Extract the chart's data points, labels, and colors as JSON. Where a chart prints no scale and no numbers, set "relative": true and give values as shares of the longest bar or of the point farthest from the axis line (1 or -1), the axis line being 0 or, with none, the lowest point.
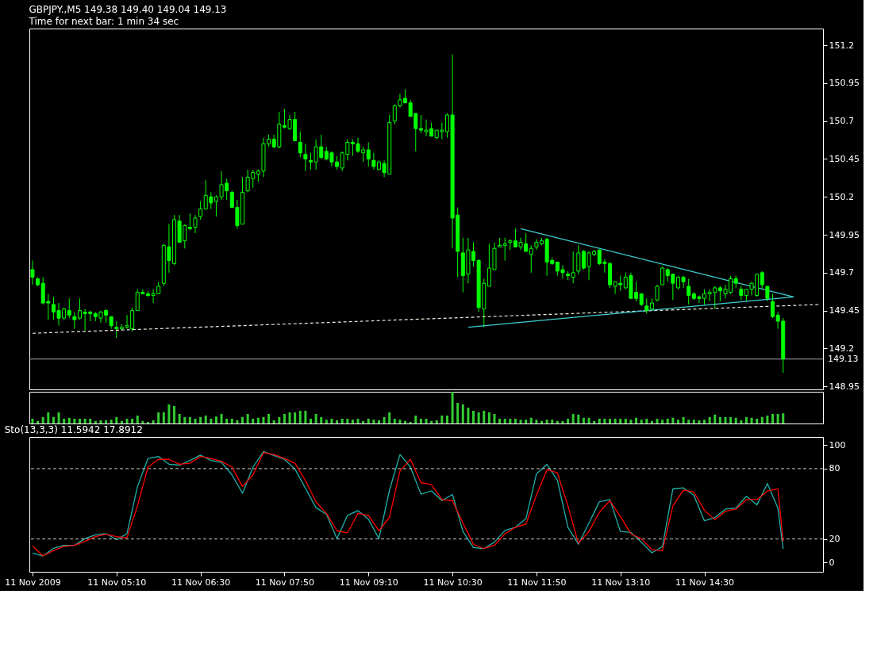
{
  "chart_data": [
    {
      "type": "candlestick",
      "title": "GBPJPY.,M5  149.38 149.40 149.04 149.13",
      "subtitle": "Time for next bar: 1 min 34 sec",
      "color": "#00ff00",
      "tick_labels": "y",
      "xlim": [
        "2009-11-11T03:47",
        "2009-11-11T16:23"
      ],
      "ylim": [
        148.93,
        151.31
      ],
      "yticks": [
        148.95,
        149.2,
        149.45,
        149.7,
        149.95,
        150.2,
        150.45,
        150.7,
        150.95,
        151.2
      ],
      "x": [
        "2009-11-11T03:50",
        "2009-11-11T03:55",
        "2009-11-11T04:00",
        "2009-11-11T04:05",
        "2009-11-11T04:10",
        "2009-11-11T04:15",
        "2009-11-11T04:20",
        "2009-11-11T04:25",
        "2009-11-11T04:30",
        "2009-11-11T04:35",
        "2009-11-11T04:40",
        "2009-11-11T04:45",
        "2009-11-11T04:50",
        "2009-11-11T04:55",
        "2009-11-11T05:00",
        "2009-11-11T05:05",
        "2009-11-11T05:10",
        "2009-11-11T05:15",
        "2009-11-11T05:20",
        "2009-11-11T05:25",
        "2009-11-11T05:30",
        "2009-11-11T05:35",
        "2009-11-11T05:40",
        "2009-11-11T05:45",
        "2009-11-11T05:50",
        "2009-11-11T05:55",
        "2009-11-11T06:00",
        "2009-11-11T06:05",
        "2009-11-11T06:10",
        "2009-11-11T06:15",
        "2009-11-11T06:20",
        "2009-11-11T06:25",
        "2009-11-11T06:30",
        "2009-11-11T06:35",
        "2009-11-11T06:40",
        "2009-11-11T06:45",
        "2009-11-11T06:50",
        "2009-11-11T06:55",
        "2009-11-11T07:00",
        "2009-11-11T07:05",
        "2009-11-11T07:10",
        "2009-11-11T07:15",
        "2009-11-11T07:20",
        "2009-11-11T07:25",
        "2009-11-11T07:30",
        "2009-11-11T07:35",
        "2009-11-11T07:40",
        "2009-11-11T07:45",
        "2009-11-11T07:50",
        "2009-11-11T07:55",
        "2009-11-11T08:00",
        "2009-11-11T08:05",
        "2009-11-11T08:10",
        "2009-11-11T08:15",
        "2009-11-11T08:20",
        "2009-11-11T08:25",
        "2009-11-11T08:30",
        "2009-11-11T08:35",
        "2009-11-11T08:40",
        "2009-11-11T08:45",
        "2009-11-11T08:50",
        "2009-11-11T08:55",
        "2009-11-11T09:00",
        "2009-11-11T09:05",
        "2009-11-11T09:10",
        "2009-11-11T09:15",
        "2009-11-11T09:20",
        "2009-11-11T09:25",
        "2009-11-11T09:30",
        "2009-11-11T09:35",
        "2009-11-11T09:40",
        "2009-11-11T09:45",
        "2009-11-11T09:50",
        "2009-11-11T09:55",
        "2009-11-11T10:00",
        "2009-11-11T10:05",
        "2009-11-11T10:10",
        "2009-11-11T10:15",
        "2009-11-11T10:20",
        "2009-11-11T10:25",
        "2009-11-11T10:30",
        "2009-11-11T10:35",
        "2009-11-11T10:40",
        "2009-11-11T10:45",
        "2009-11-11T10:50",
        "2009-11-11T10:55",
        "2009-11-11T11:00",
        "2009-11-11T11:05",
        "2009-11-11T11:10",
        "2009-11-11T11:15",
        "2009-11-11T11:20",
        "2009-11-11T11:25",
        "2009-11-11T11:30",
        "2009-11-11T11:35",
        "2009-11-11T11:40",
        "2009-11-11T11:45",
        "2009-11-11T11:50",
        "2009-11-11T11:55",
        "2009-11-11T12:00",
        "2009-11-11T12:05",
        "2009-11-11T12:10",
        "2009-11-11T12:15",
        "2009-11-11T12:20",
        "2009-11-11T12:25",
        "2009-11-11T12:30",
        "2009-11-11T12:35",
        "2009-11-11T12:40",
        "2009-11-11T12:45",
        "2009-11-11T12:50",
        "2009-11-11T12:55",
        "2009-11-11T13:00",
        "2009-11-11T13:05",
        "2009-11-11T13:10",
        "2009-11-11T13:15",
        "2009-11-11T13:20",
        "2009-11-11T13:25",
        "2009-11-11T13:30",
        "2009-11-11T13:35",
        "2009-11-11T13:40",
        "2009-11-11T13:45",
        "2009-11-11T13:50",
        "2009-11-11T13:55",
        "2009-11-11T14:00",
        "2009-11-11T14:05",
        "2009-11-11T14:10",
        "2009-11-11T14:15",
        "2009-11-11T14:20",
        "2009-11-11T14:25",
        "2009-11-11T14:30",
        "2009-11-11T14:35",
        "2009-11-11T14:40",
        "2009-11-11T14:45",
        "2009-11-11T14:50",
        "2009-11-11T14:55",
        "2009-11-11T15:00",
        "2009-11-11T15:05",
        "2009-11-11T15:10",
        "2009-11-11T15:15",
        "2009-11-11T15:20",
        "2009-11-11T15:25",
        "2009-11-11T15:30",
        "2009-11-11T15:35",
        "2009-11-11T15:40",
        "2009-11-11T15:45"
      ],
      "ohlc": [
        [
          149.72,
          149.78,
          149.62,
          149.67
        ],
        [
          149.66,
          149.67,
          149.61,
          149.62
        ],
        [
          149.63,
          149.67,
          149.49,
          149.5
        ],
        [
          149.51,
          149.56,
          149.39,
          149.5
        ],
        [
          149.49,
          149.54,
          149.39,
          149.44
        ],
        [
          149.45,
          149.5,
          149.35,
          149.4
        ],
        [
          149.4,
          149.47,
          149.39,
          149.46
        ],
        [
          149.45,
          149.53,
          149.4,
          149.42
        ],
        [
          149.41,
          149.44,
          149.33,
          149.39
        ],
        [
          149.4,
          149.53,
          149.39,
          149.45
        ],
        [
          149.44,
          149.46,
          149.32,
          149.43
        ],
        [
          149.44,
          149.45,
          149.38,
          149.43
        ],
        [
          149.43,
          149.44,
          149.38,
          149.41
        ],
        [
          149.4,
          149.45,
          149.37,
          149.44
        ],
        [
          149.45,
          149.46,
          149.37,
          149.42
        ],
        [
          149.41,
          149.41,
          149.33,
          149.35
        ],
        [
          149.34,
          149.38,
          149.27,
          149.33
        ],
        [
          149.33,
          149.36,
          149.32,
          149.34
        ],
        [
          149.34,
          149.42,
          149.33,
          149.35
        ],
        [
          149.33,
          149.47,
          149.31,
          149.45
        ],
        [
          149.45,
          149.59,
          149.45,
          149.57
        ],
        [
          149.57,
          149.59,
          149.56,
          149.56
        ],
        [
          149.56,
          149.58,
          149.54,
          149.55
        ],
        [
          149.55,
          149.59,
          149.5,
          149.56
        ],
        [
          149.56,
          149.64,
          149.56,
          149.61
        ],
        [
          149.63,
          149.89,
          149.61,
          149.88
        ],
        [
          149.87,
          150.02,
          149.7,
          149.78
        ],
        [
          149.76,
          150.08,
          149.75,
          150.05
        ],
        [
          150.04,
          150.08,
          149.9,
          149.9
        ],
        [
          149.91,
          150.02,
          149.86,
          150.01
        ],
        [
          150.0,
          150.09,
          149.98,
          149.99
        ],
        [
          150.0,
          150.08,
          149.96,
          150.06
        ],
        [
          150.07,
          150.17,
          150.05,
          150.12
        ],
        [
          150.12,
          150.31,
          150.12,
          150.21
        ],
        [
          150.2,
          150.23,
          150.12,
          150.16
        ],
        [
          150.17,
          150.21,
          150.07,
          150.2
        ],
        [
          150.2,
          150.37,
          150.18,
          150.28
        ],
        [
          150.29,
          150.32,
          150.18,
          150.24
        ],
        [
          150.23,
          150.24,
          150.13,
          150.13
        ],
        [
          150.13,
          150.18,
          149.99,
          150.01
        ],
        [
          150.02,
          150.33,
          150.02,
          150.23
        ],
        [
          150.24,
          150.38,
          150.23,
          150.33
        ],
        [
          150.32,
          150.38,
          150.26,
          150.36
        ],
        [
          150.35,
          150.38,
          150.3,
          150.37
        ],
        [
          150.37,
          150.59,
          150.33,
          150.55
        ],
        [
          150.55,
          150.61,
          150.53,
          150.58
        ],
        [
          150.58,
          150.61,
          150.52,
          150.53
        ],
        [
          150.53,
          150.76,
          150.52,
          150.68
        ],
        [
          150.67,
          150.78,
          150.65,
          150.66
        ],
        [
          150.65,
          150.74,
          150.64,
          150.71
        ],
        [
          150.71,
          150.76,
          150.57,
          150.57
        ],
        [
          150.56,
          150.63,
          150.46,
          150.49
        ],
        [
          150.48,
          150.55,
          150.37,
          150.45
        ],
        [
          150.44,
          150.49,
          150.38,
          150.43
        ],
        [
          150.43,
          150.58,
          150.38,
          150.53
        ],
        [
          150.53,
          150.61,
          150.45,
          150.46
        ],
        [
          150.5,
          150.53,
          150.44,
          150.45
        ],
        [
          150.49,
          150.5,
          150.4,
          150.43
        ],
        [
          150.43,
          150.47,
          150.38,
          150.4
        ],
        [
          150.39,
          150.5,
          150.37,
          150.49
        ],
        [
          150.48,
          150.58,
          150.44,
          150.56
        ],
        [
          150.56,
          150.58,
          150.47,
          150.55
        ],
        [
          150.55,
          150.59,
          150.49,
          150.5
        ],
        [
          150.49,
          150.53,
          150.43,
          150.51
        ],
        [
          150.51,
          150.56,
          150.4,
          150.45
        ],
        [
          150.44,
          150.49,
          150.38,
          150.4
        ],
        [
          150.38,
          150.44,
          150.38,
          150.43
        ],
        [
          150.42,
          150.44,
          150.33,
          150.36
        ],
        [
          150.35,
          150.74,
          150.35,
          150.69
        ],
        [
          150.7,
          150.81,
          150.68,
          150.8
        ],
        [
          150.8,
          150.88,
          150.79,
          150.84
        ],
        [
          150.85,
          150.91,
          150.82,
          150.82
        ],
        [
          150.82,
          150.84,
          150.73,
          150.73
        ],
        [
          150.75,
          150.75,
          150.5,
          150.65
        ],
        [
          150.65,
          150.74,
          150.62,
          150.64
        ],
        [
          150.63,
          150.71,
          150.6,
          150.64
        ],
        [
          150.65,
          150.69,
          150.6,
          150.6
        ],
        [
          150.59,
          150.64,
          150.58,
          150.64
        ],
        [
          150.63,
          150.69,
          150.58,
          150.64
        ],
        [
          150.63,
          150.75,
          150.59,
          150.74
        ],
        [
          150.74,
          151.14,
          149.86,
          150.06
        ],
        [
          150.08,
          150.13,
          149.67,
          149.84
        ],
        [
          149.83,
          149.93,
          149.57,
          149.68
        ],
        [
          149.69,
          149.93,
          149.63,
          149.85
        ],
        [
          149.84,
          149.9,
          149.74,
          149.78
        ],
        [
          149.78,
          149.79,
          149.44,
          149.47
        ],
        [
          149.46,
          149.66,
          149.34,
          149.63
        ],
        [
          149.61,
          149.89,
          149.61,
          149.73
        ],
        [
          149.72,
          149.9,
          149.72,
          149.86
        ],
        [
          149.87,
          149.93,
          149.87,
          149.88
        ],
        [
          149.88,
          149.93,
          149.78,
          149.89
        ],
        [
          149.9,
          149.92,
          149.85,
          149.91
        ],
        [
          149.91,
          149.99,
          149.87,
          149.87
        ],
        [
          149.87,
          149.93,
          149.85,
          149.9
        ],
        [
          149.89,
          149.96,
          149.84,
          149.84
        ],
        [
          149.82,
          149.88,
          149.7,
          149.86
        ],
        [
          149.87,
          149.92,
          149.85,
          149.9
        ],
        [
          149.89,
          149.93,
          149.88,
          149.91
        ],
        [
          149.92,
          149.93,
          149.68,
          149.77
        ],
        [
          149.78,
          149.8,
          149.75,
          149.76
        ],
        [
          149.77,
          149.77,
          149.68,
          149.71
        ],
        [
          149.72,
          149.75,
          149.66,
          149.7
        ],
        [
          149.69,
          149.71,
          149.65,
          149.68
        ],
        [
          149.67,
          149.84,
          149.63,
          149.7
        ],
        [
          149.71,
          149.88,
          149.69,
          149.83
        ],
        [
          149.84,
          149.85,
          149.72,
          149.73
        ],
        [
          149.74,
          149.84,
          149.65,
          149.83
        ],
        [
          149.82,
          149.85,
          149.81,
          149.84
        ],
        [
          149.85,
          149.85,
          149.75,
          149.76
        ],
        [
          149.77,
          149.79,
          149.7,
          149.76
        ],
        [
          149.76,
          149.77,
          149.6,
          149.62
        ],
        [
          149.61,
          149.64,
          149.56,
          149.64
        ],
        [
          149.63,
          149.68,
          149.58,
          149.62
        ],
        [
          149.6,
          149.7,
          149.59,
          149.67
        ],
        [
          149.68,
          149.7,
          149.53,
          149.53
        ],
        [
          149.57,
          149.64,
          149.51,
          149.53
        ],
        [
          149.56,
          149.56,
          149.48,
          149.49
        ],
        [
          149.48,
          149.53,
          149.43,
          149.45
        ],
        [
          149.46,
          149.53,
          149.45,
          149.5
        ],
        [
          149.52,
          149.62,
          149.51,
          149.61
        ],
        [
          149.62,
          149.74,
          149.62,
          149.73
        ],
        [
          149.72,
          149.73,
          149.64,
          149.68
        ],
        [
          149.69,
          149.69,
          149.52,
          149.63
        ],
        [
          149.6,
          149.68,
          149.59,
          149.67
        ],
        [
          149.67,
          149.68,
          149.6,
          149.64
        ],
        [
          149.61,
          149.66,
          149.49,
          149.55
        ],
        [
          149.56,
          149.57,
          149.52,
          149.53
        ],
        [
          149.54,
          149.55,
          149.5,
          149.53
        ],
        [
          149.53,
          149.59,
          149.49,
          149.56
        ],
        [
          149.56,
          149.59,
          149.51,
          149.57
        ],
        [
          149.57,
          149.61,
          149.46,
          149.6
        ],
        [
          149.6,
          149.61,
          149.51,
          149.58
        ],
        [
          149.56,
          149.62,
          149.53,
          149.59
        ],
        [
          149.57,
          149.68,
          149.56,
          149.66
        ],
        [
          149.66,
          149.68,
          149.6,
          149.63
        ],
        [
          149.59,
          149.61,
          149.52,
          149.55
        ],
        [
          149.55,
          149.59,
          149.51,
          149.59
        ],
        [
          149.59,
          149.64,
          149.55,
          149.63
        ],
        [
          149.55,
          149.69,
          149.54,
          149.69
        ],
        [
          149.7,
          149.71,
          149.59,
          149.62
        ],
        [
          149.61,
          149.61,
          149.51,
          149.53
        ],
        [
          149.51,
          149.56,
          149.4,
          149.41
        ],
        [
          149.42,
          149.44,
          149.33,
          149.38
        ],
        [
          149.38,
          149.4,
          149.04,
          149.13
        ]
      ],
      "series": [
        {
          "type": "line",
          "color": "#f0f0e0",
          "line_style": "dashed",
          "x": [
            "2009-11-11T03:50",
            "2009-11-11T16:20"
          ],
          "values": [
            149.3,
            149.49
          ]
        },
        {
          "type": "line",
          "color": "#40d0d0",
          "line_style": "solid",
          "x": [
            "2009-11-11T11:35",
            "2009-11-11T15:55"
          ],
          "values": [
            149.99,
            149.54
          ]
        },
        {
          "type": "line",
          "color": "#40d0d0",
          "line_style": "solid",
          "x": [
            "2009-11-11T10:45",
            "2009-11-11T15:55"
          ],
          "values": [
            149.34,
            149.54
          ]
        }
      ],
      "ref_lines": [
        {
          "axis": "y",
          "value": 149.13,
          "label": "149.13",
          "color": "#a0a8b0"
        }
      ]
    },
    {
      "type": "bar",
      "relative": true,
      "color": "#32cd32",
      "tick_labels": false,
      "xlim": [
        "2009-11-11T03:47",
        "2009-11-11T16:23"
      ],
      "x": [
        "2009-11-11T03:50",
        "2009-11-11T03:55",
        "2009-11-11T04:00",
        "2009-11-11T04:05",
        "2009-11-11T04:10",
        "2009-11-11T04:15",
        "2009-11-11T04:20",
        "2009-11-11T04:25",
        "2009-11-11T04:30",
        "2009-11-11T04:35",
        "2009-11-11T04:40",
        "2009-11-11T04:45",
        "2009-11-11T04:50",
        "2009-11-11T04:55",
        "2009-11-11T05:00",
        "2009-11-11T05:05",
        "2009-11-11T05:10",
        "2009-11-11T05:15",
        "2009-11-11T05:20",
        "2009-11-11T05:25",
        "2009-11-11T05:30",
        "2009-11-11T05:35",
        "2009-11-11T05:40",
        "2009-11-11T05:45",
        "2009-11-11T05:50",
        "2009-11-11T05:55",
        "2009-11-11T06:00",
        "2009-11-11T06:05",
        "2009-11-11T06:10",
        "2009-11-11T06:15",
        "2009-11-11T06:20",
        "2009-11-11T06:25",
        "2009-11-11T06:30",
        "2009-11-11T06:35",
        "2009-11-11T06:40",
        "2009-11-11T06:45",
        "2009-11-11T06:50",
        "2009-11-11T06:55",
        "2009-11-11T07:00",
        "2009-11-11T07:05",
        "2009-11-11T07:10",
        "2009-11-11T07:15",
        "2009-11-11T07:20",
        "2009-11-11T07:25",
        "2009-11-11T07:30",
        "2009-11-11T07:35",
        "2009-11-11T07:40",
        "2009-11-11T07:45",
        "2009-11-11T07:50",
        "2009-11-11T07:55",
        "2009-11-11T08:00",
        "2009-11-11T08:05",
        "2009-11-11T08:10",
        "2009-11-11T08:15",
        "2009-11-11T08:20",
        "2009-11-11T08:25",
        "2009-11-11T08:30",
        "2009-11-11T08:35",
        "2009-11-11T08:40",
        "2009-11-11T08:45",
        "2009-11-11T08:50",
        "2009-11-11T08:55",
        "2009-11-11T09:00",
        "2009-11-11T09:05",
        "2009-11-11T09:10",
        "2009-11-11T09:15",
        "2009-11-11T09:20",
        "2009-11-11T09:25",
        "2009-11-11T09:30",
        "2009-11-11T09:35",
        "2009-11-11T09:40",
        "2009-11-11T09:45",
        "2009-11-11T09:50",
        "2009-11-11T09:55",
        "2009-11-11T10:00",
        "2009-11-11T10:05",
        "2009-11-11T10:10",
        "2009-11-11T10:15",
        "2009-11-11T10:20",
        "2009-11-11T10:25",
        "2009-11-11T10:30",
        "2009-11-11T10:35",
        "2009-11-11T10:40",
        "2009-11-11T10:45",
        "2009-11-11T10:50",
        "2009-11-11T10:55",
        "2009-11-11T11:00",
        "2009-11-11T11:05",
        "2009-11-11T11:10",
        "2009-11-11T11:15",
        "2009-11-11T11:20",
        "2009-11-11T11:25",
        "2009-11-11T11:30",
        "2009-11-11T11:35",
        "2009-11-11T11:40",
        "2009-11-11T11:45",
        "2009-11-11T11:50",
        "2009-11-11T11:55",
        "2009-11-11T12:00",
        "2009-11-11T12:05",
        "2009-11-11T12:10",
        "2009-11-11T12:15",
        "2009-11-11T12:20",
        "2009-11-11T12:25",
        "2009-11-11T12:30",
        "2009-11-11T12:35",
        "2009-11-11T12:40",
        "2009-11-11T12:45",
        "2009-11-11T12:50",
        "2009-11-11T12:55",
        "2009-11-11T13:00",
        "2009-11-11T13:05",
        "2009-11-11T13:10",
        "2009-11-11T13:15",
        "2009-11-11T13:20",
        "2009-11-11T13:25",
        "2009-11-11T13:30",
        "2009-11-11T13:35",
        "2009-11-11T13:40",
        "2009-11-11T13:45",
        "2009-11-11T13:50",
        "2009-11-11T13:55",
        "2009-11-11T14:00",
        "2009-11-11T14:05",
        "2009-11-11T14:10",
        "2009-11-11T14:15",
        "2009-11-11T14:20",
        "2009-11-11T14:25",
        "2009-11-11T14:30",
        "2009-11-11T14:35",
        "2009-11-11T14:40",
        "2009-11-11T14:45",
        "2009-11-11T14:50",
        "2009-11-11T14:55",
        "2009-11-11T15:00",
        "2009-11-11T15:05",
        "2009-11-11T15:10",
        "2009-11-11T15:15",
        "2009-11-11T15:20",
        "2009-11-11T15:25",
        "2009-11-11T15:30",
        "2009-11-11T15:35",
        "2009-11-11T15:40",
        "2009-11-11T15:45"
      ],
      "values": [
        0.15,
        0.08,
        0.2,
        0.35,
        0.2,
        0.35,
        0.15,
        0.18,
        0.15,
        0.15,
        0.15,
        0.15,
        0.08,
        0.1,
        0.1,
        0.12,
        0.2,
        0.08,
        0.15,
        0.15,
        0.25,
        0.08,
        0.05,
        0.1,
        0.35,
        0.35,
        0.6,
        0.55,
        0.3,
        0.2,
        0.2,
        0.15,
        0.2,
        0.25,
        0.15,
        0.22,
        0.3,
        0.15,
        0.15,
        0.1,
        0.2,
        0.3,
        0.15,
        0.18,
        0.2,
        0.3,
        0.1,
        0.2,
        0.3,
        0.35,
        0.35,
        0.4,
        0.4,
        0.15,
        0.3,
        0.2,
        0.12,
        0.15,
        0.1,
        0.15,
        0.15,
        0.12,
        0.15,
        0.08,
        0.15,
        0.12,
        0.1,
        0.2,
        0.35,
        0.15,
        0.12,
        0.08,
        0.05,
        0.25,
        0.15,
        0.15,
        0.08,
        0.1,
        0.25,
        0.25,
        1.0,
        0.65,
        0.6,
        0.5,
        0.4,
        0.35,
        0.4,
        0.35,
        0.3,
        0.15,
        0.15,
        0.15,
        0.15,
        0.12,
        0.12,
        0.18,
        0.12,
        0.08,
        0.12,
        0.12,
        0.08,
        0.08,
        0.15,
        0.3,
        0.28,
        0.18,
        0.18,
        0.08,
        0.15,
        0.15,
        0.15,
        0.15,
        0.15,
        0.15,
        0.12,
        0.18,
        0.12,
        0.15,
        0.08,
        0.15,
        0.12,
        0.15,
        0.18,
        0.12,
        0.2,
        0.12,
        0.12,
        0.1,
        0.12,
        0.2,
        0.28,
        0.2,
        0.2,
        0.2,
        0.18,
        0.1,
        0.2,
        0.18,
        0.15,
        0.2,
        0.25,
        0.3,
        0.3,
        0.32
      ]
    },
    {
      "type": "line",
      "title": "Sto(13,3,3) 11.5942 17.8912",
      "xlim": [
        "2009-11-11T03:47",
        "2009-11-11T16:23"
      ],
      "ylim": [
        -8,
        107
      ],
      "yticks": [
        0,
        20,
        80,
        100
      ],
      "xticks": [
        {
          "value": "2009-11-11T03:50",
          "label": "11 Nov 2009"
        },
        {
          "value": "2009-11-11T05:10",
          "label": "11 Nov 05:10"
        },
        {
          "value": "2009-11-11T06:30",
          "label": "11 Nov 06:30"
        },
        {
          "value": "2009-11-11T07:50",
          "label": "11 Nov 07:50"
        },
        {
          "value": "2009-11-11T09:10",
          "label": "11 Nov 09:10"
        },
        {
          "value": "2009-11-11T10:30",
          "label": "11 Nov 10:30"
        },
        {
          "value": "2009-11-11T11:50",
          "label": "11 Nov 11:50"
        },
        {
          "value": "2009-11-11T13:10",
          "label": "11 Nov 13:10"
        },
        {
          "value": "2009-11-11T14:30",
          "label": "11 Nov 14:30"
        }
      ],
      "ref_lines": [
        {
          "axis": "y",
          "value": 80,
          "color": "#c8c8c8",
          "line_style": "dashed"
        },
        {
          "axis": "y",
          "value": 20,
          "color": "#c8c8c8",
          "line_style": "dashed"
        }
      ],
      "series": [
        {
          "color": "#20b2aa",
          "x": [
            "2009-11-11T03:50",
            "2009-11-11T04:00",
            "2009-11-11T04:10",
            "2009-11-11T04:20",
            "2009-11-11T04:30",
            "2009-11-11T04:40",
            "2009-11-11T04:50",
            "2009-11-11T05:00",
            "2009-11-11T05:10",
            "2009-11-11T05:20",
            "2009-11-11T05:30",
            "2009-11-11T05:40",
            "2009-11-11T05:50",
            "2009-11-11T06:00",
            "2009-11-11T06:10",
            "2009-11-11T06:20",
            "2009-11-11T06:30",
            "2009-11-11T06:40",
            "2009-11-11T06:50",
            "2009-11-11T07:00",
            "2009-11-11T07:10",
            "2009-11-11T07:20",
            "2009-11-11T07:30",
            "2009-11-11T07:40",
            "2009-11-11T07:50",
            "2009-11-11T08:00",
            "2009-11-11T08:10",
            "2009-11-11T08:20",
            "2009-11-11T08:30",
            "2009-11-11T08:40",
            "2009-11-11T08:50",
            "2009-11-11T09:00",
            "2009-11-11T09:10",
            "2009-11-11T09:20",
            "2009-11-11T09:30",
            "2009-11-11T09:40",
            "2009-11-11T09:50",
            "2009-11-11T10:00",
            "2009-11-11T10:10",
            "2009-11-11T10:20",
            "2009-11-11T10:30",
            "2009-11-11T10:40",
            "2009-11-11T10:50",
            "2009-11-11T11:00",
            "2009-11-11T11:10",
            "2009-11-11T11:20",
            "2009-11-11T11:30",
            "2009-11-11T11:40",
            "2009-11-11T11:50",
            "2009-11-11T12:00",
            "2009-11-11T12:10",
            "2009-11-11T12:20",
            "2009-11-11T12:30",
            "2009-11-11T12:40",
            "2009-11-11T12:50",
            "2009-11-11T13:00",
            "2009-11-11T13:10",
            "2009-11-11T13:20",
            "2009-11-11T13:30",
            "2009-11-11T13:40",
            "2009-11-11T13:50",
            "2009-11-11T14:00",
            "2009-11-11T14:10",
            "2009-11-11T14:20",
            "2009-11-11T14:30",
            "2009-11-11T14:40",
            "2009-11-11T14:50",
            "2009-11-11T15:00",
            "2009-11-11T15:10",
            "2009-11-11T15:20",
            "2009-11-11T15:30",
            "2009-11-11T15:40",
            "2009-11-11T15:45"
          ],
          "values": [
            8,
            5.5,
            12,
            14.6,
            14.6,
            20.3,
            23.6,
            24.5,
            19.5,
            24.5,
            64.8,
            88.7,
            90.4,
            83.8,
            83,
            87,
            91.5,
            87,
            85.4,
            74.7,
            59,
            81.3,
            94.5,
            91.2,
            87.9,
            79.7,
            63.2,
            46.7,
            41,
            20.3,
            40.1,
            44.2,
            36.8,
            20.3,
            61.5,
            92,
            81.3,
            58.2,
            61,
            52.7,
            58,
            26.4,
            12.7,
            11.8,
            17.3,
            27.3,
            30,
            37.3,
            75.5,
            83.6,
            70,
            30,
            15.5,
            33.6,
            51.8,
            53.6,
            26.4,
            25.5,
            17.3,
            8.2,
            13.6,
            62.7,
            63.6,
            57.3,
            35.5,
            38.2,
            45.5,
            46.4,
            56.4,
            49.1,
            67.3,
            46.4,
            11.6
          ]
        },
        {
          "color": "#ff0000",
          "x": [
            "2009-11-11T03:50",
            "2009-11-11T04:00",
            "2009-11-11T04:10",
            "2009-11-11T04:20",
            "2009-11-11T04:30",
            "2009-11-11T04:40",
            "2009-11-11T04:50",
            "2009-11-11T05:00",
            "2009-11-11T05:10",
            "2009-11-11T05:20",
            "2009-11-11T05:30",
            "2009-11-11T05:40",
            "2009-11-11T05:50",
            "2009-11-11T06:00",
            "2009-11-11T06:10",
            "2009-11-11T06:20",
            "2009-11-11T06:30",
            "2009-11-11T06:40",
            "2009-11-11T06:50",
            "2009-11-11T07:00",
            "2009-11-11T07:10",
            "2009-11-11T07:20",
            "2009-11-11T07:30",
            "2009-11-11T07:40",
            "2009-11-11T07:50",
            "2009-11-11T08:00",
            "2009-11-11T08:10",
            "2009-11-11T08:20",
            "2009-11-11T08:30",
            "2009-11-11T08:40",
            "2009-11-11T08:50",
            "2009-11-11T09:00",
            "2009-11-11T09:10",
            "2009-11-11T09:20",
            "2009-11-11T09:30",
            "2009-11-11T09:40",
            "2009-11-11T09:50",
            "2009-11-11T10:00",
            "2009-11-11T10:10",
            "2009-11-11T10:20",
            "2009-11-11T10:30",
            "2009-11-11T10:40",
            "2009-11-11T10:50",
            "2009-11-11T11:00",
            "2009-11-11T11:10",
            "2009-11-11T11:20",
            "2009-11-11T11:30",
            "2009-11-11T11:40",
            "2009-11-11T11:50",
            "2009-11-11T12:00",
            "2009-11-11T12:10",
            "2009-11-11T12:20",
            "2009-11-11T12:30",
            "2009-11-11T12:40",
            "2009-11-11T12:50",
            "2009-11-11T13:00",
            "2009-11-11T13:10",
            "2009-11-11T13:20",
            "2009-11-11T13:30",
            "2009-11-11T13:40",
            "2009-11-11T13:50",
            "2009-11-11T14:00",
            "2009-11-11T14:10",
            "2009-11-11T14:20",
            "2009-11-11T14:30",
            "2009-11-11T14:40",
            "2009-11-11T14:50",
            "2009-11-11T15:00",
            "2009-11-11T15:10",
            "2009-11-11T15:20",
            "2009-11-11T15:30",
            "2009-11-11T15:40",
            "2009-11-11T15:45"
          ],
          "values": [
            14,
            5.5,
            10,
            13.7,
            14.6,
            17.9,
            22,
            24,
            22,
            21,
            48.4,
            81.3,
            87.9,
            87.9,
            83.8,
            84.6,
            90.4,
            88.7,
            86.3,
            81.3,
            64.8,
            74.7,
            93.7,
            92,
            88.7,
            84.6,
            69.8,
            51.7,
            41.8,
            27,
            25.3,
            41.8,
            40.1,
            27,
            38.5,
            78,
            87.9,
            68.1,
            66.4,
            53.6,
            52.7,
            33.6,
            15.5,
            11.8,
            14.5,
            24.5,
            30,
            32.7,
            57.3,
            79.1,
            76.4,
            48.2,
            16.4,
            26.4,
            42.7,
            52.7,
            39.1,
            24.5,
            20,
            10.9,
            10,
            48.2,
            61.8,
            60,
            44.5,
            36.4,
            43.6,
            45.5,
            53.6,
            53.6,
            60.9,
            62.7,
            17.9
          ]
        }
      ]
    }
  ]
}
